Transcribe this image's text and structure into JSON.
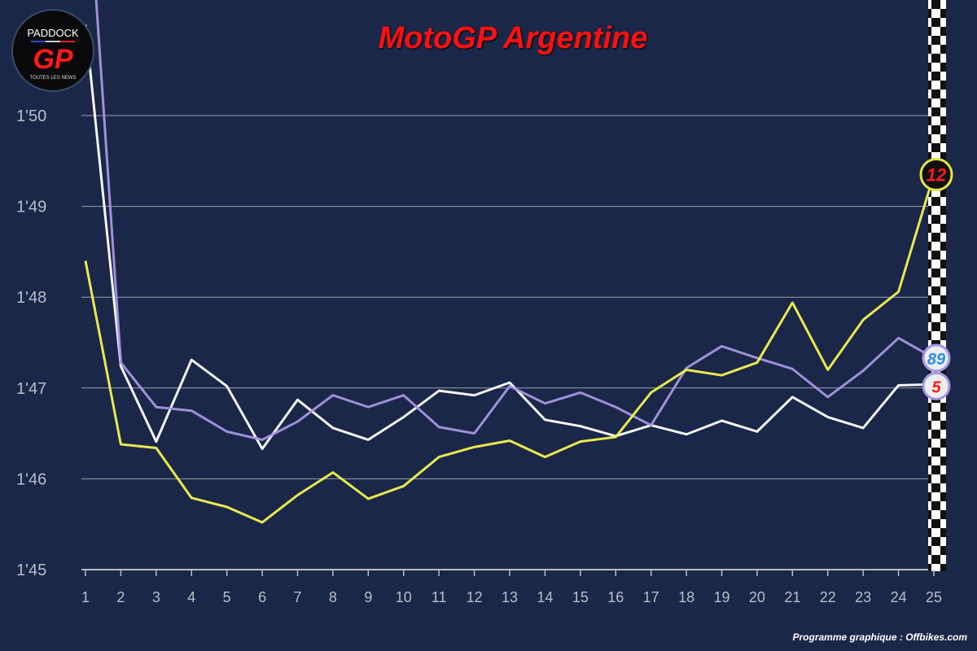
{
  "chart_data": {
    "type": "line",
    "title": "MotoGP Argentine",
    "xlabel": "",
    "ylabel": "",
    "x": [
      1,
      2,
      3,
      4,
      5,
      6,
      7,
      8,
      9,
      10,
      11,
      12,
      13,
      14,
      15,
      16,
      17,
      18,
      19,
      20,
      21,
      22,
      23,
      24,
      25
    ],
    "ylim": [
      105,
      110
    ],
    "yticks": [
      {
        "value": 105,
        "label": "1'45"
      },
      {
        "value": 106,
        "label": "1'46"
      },
      {
        "value": 107,
        "label": "1'47"
      },
      {
        "value": 108,
        "label": "1'48"
      },
      {
        "value": 109,
        "label": "1'49"
      },
      {
        "value": 110,
        "label": "1'50"
      }
    ],
    "grid": true,
    "series": [
      {
        "name": "12",
        "color": "#f4f250",
        "badge_text": "12",
        "badge_color": "#111111",
        "values": [
          108.4,
          106.38,
          106.34,
          105.79,
          105.69,
          105.52,
          105.82,
          106.07,
          105.78,
          105.92,
          106.24,
          106.35,
          106.42,
          106.24,
          106.41,
          106.46,
          106.95,
          107.2,
          107.14,
          107.28,
          107.94,
          107.2,
          107.75,
          108.06,
          109.35
        ]
      },
      {
        "name": "89",
        "color": "#a596e0",
        "badge_text": "89",
        "badge_color": "#eeeeee",
        "values": [
          113.0,
          107.28,
          106.79,
          106.75,
          106.52,
          106.43,
          106.63,
          106.92,
          106.79,
          106.92,
          106.57,
          106.5,
          107.02,
          106.83,
          106.95,
          106.79,
          106.59,
          107.22,
          107.46,
          107.33,
          107.21,
          106.9,
          107.19,
          107.55,
          107.33
        ]
      },
      {
        "name": "5",
        "color": "#ffffff",
        "badge_text": "5",
        "badge_color": "#eeeeee",
        "values": [
          111.0,
          107.24,
          106.41,
          107.31,
          107.02,
          106.33,
          106.87,
          106.56,
          106.43,
          106.68,
          106.97,
          106.92,
          107.06,
          106.65,
          106.58,
          106.47,
          106.59,
          106.49,
          106.64,
          106.52,
          106.9,
          106.68,
          106.56,
          107.03,
          107.04
        ]
      }
    ]
  },
  "logo": {
    "top": "PADDOCK",
    "main": "GP",
    "sub": "TOUTES LES NEWS"
  },
  "credit": "Programme graphique : Offbikes.com"
}
